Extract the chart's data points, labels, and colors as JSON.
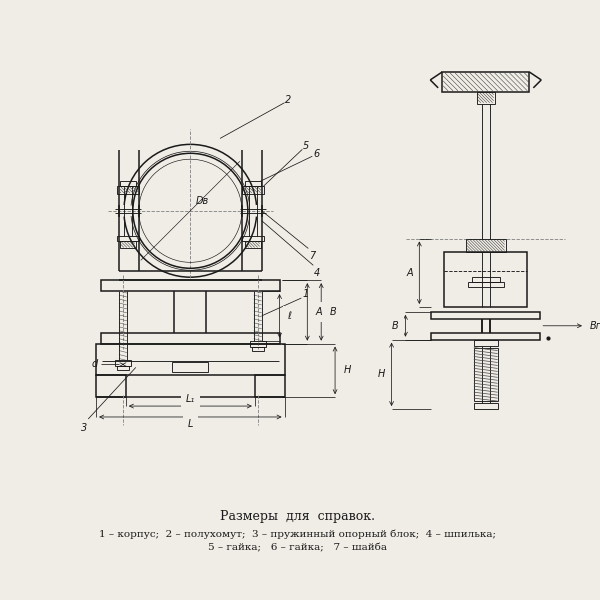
{
  "bg_color": "#f0ede6",
  "line_color": "#1a1a1a",
  "title": "Размеры  для  справок.",
  "legend1": "1 – корпус;  2 – полухомут;  3 – пружинный опорный блок;  4 – шпилька;",
  "legend2": "5 – гайка;   6 – гайка;   7 – шайба",
  "lbl_Dv": "Dв",
  "lbl_d": "d",
  "lbl_l": "ℓ",
  "lbl_A": "A",
  "lbl_B": "B",
  "lbl_H": "H",
  "lbl_L": "L",
  "lbl_L1": "L₁",
  "lbl_Br": "Bг",
  "lbl_1": "1",
  "lbl_2": "2",
  "lbl_3": "3",
  "lbl_4": "4",
  "lbl_5": "5",
  "lbl_6": "6",
  "lbl_7": "7"
}
